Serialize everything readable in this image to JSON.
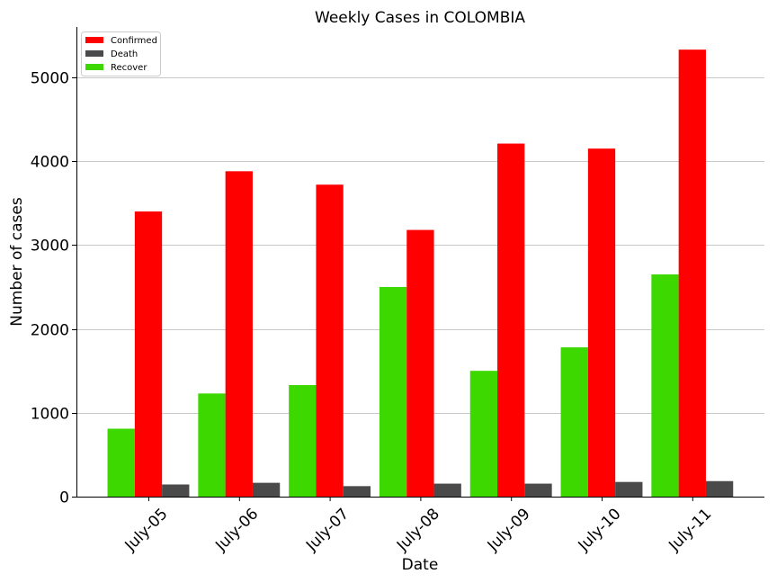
{
  "chart_data": {
    "type": "bar",
    "title": "Weekly Cases in COLOMBIA",
    "xlabel": "Date",
    "ylabel": "Number of cases",
    "categories": [
      "July-05",
      "July-06",
      "July-07",
      "July-08",
      "July-09",
      "July-10",
      "July-11"
    ],
    "series": [
      {
        "name": "Recover",
        "color": "#3cd800",
        "values": [
          810,
          1230,
          1330,
          2500,
          1500,
          1780,
          2650
        ]
      },
      {
        "name": "Confirmed",
        "color": "#ff0000",
        "values": [
          3400,
          3880,
          3720,
          3180,
          4210,
          4150,
          5330
        ]
      },
      {
        "name": "Death",
        "color": "#4a4a4a",
        "values": [
          145,
          165,
          125,
          155,
          155,
          175,
          185
        ]
      }
    ],
    "legend_order": [
      "Confirmed",
      "Death",
      "Recover"
    ],
    "legend_position": "top-left",
    "ylim": [
      0,
      5600
    ],
    "yticks": [
      0,
      1000,
      2000,
      3000,
      4000,
      5000
    ],
    "ytick_labels": [
      "0",
      "1000",
      "2000",
      "3000",
      "4000",
      "5000"
    ],
    "grid": "horizontal"
  }
}
